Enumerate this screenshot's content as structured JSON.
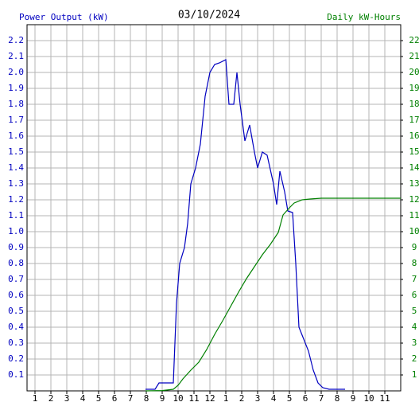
{
  "chart_data": {
    "type": "line",
    "title": "03/10/2024",
    "ylabel": "Power Output (kW)",
    "y2label": "Daily kW-Hours",
    "xlim": [
      0.5,
      24
    ],
    "xticks": [
      1,
      2,
      3,
      4,
      5,
      6,
      7,
      8,
      9,
      10,
      11,
      12,
      {
        "value": 13,
        "label": "1"
      },
      {
        "value": 14,
        "label": "2"
      },
      {
        "value": 15,
        "label": "3"
      },
      {
        "value": 16,
        "label": "4"
      },
      {
        "value": 17,
        "label": "5"
      },
      {
        "value": 18,
        "label": "6"
      },
      {
        "value": 19,
        "label": "7"
      },
      {
        "value": 20,
        "label": "8"
      },
      {
        "value": 21,
        "label": "9"
      },
      {
        "value": 22,
        "label": "10"
      },
      {
        "value": 23,
        "label": "11"
      }
    ],
    "ylim": [
      0,
      2.3
    ],
    "yticks": [
      0.1,
      0.2,
      0.3,
      0.4,
      0.5,
      0.6,
      0.7,
      0.8,
      0.9,
      {
        "value": 1.0,
        "label": "1.0"
      },
      1.1,
      1.2,
      1.3,
      1.4,
      1.5,
      1.6,
      1.7,
      1.8,
      1.9,
      {
        "value": 2.0,
        "label": "2.0"
      },
      2.1,
      2.2
    ],
    "y2lim": [
      0,
      23
    ],
    "y2ticks": [
      1,
      2,
      3,
      4,
      5,
      6,
      7,
      8,
      9,
      10,
      11,
      12,
      13,
      14,
      15,
      16,
      17,
      18,
      19,
      20,
      21,
      22
    ],
    "grid": true,
    "series": [
      {
        "name": "Power Output (kW)",
        "color": "#0000c0",
        "x": [
          7.95,
          8.55,
          8.8,
          9.7,
          9.9,
          10.1,
          10.4,
          10.6,
          10.8,
          11.1,
          11.4,
          11.7,
          12.0,
          12.3,
          12.6,
          13.0,
          13.2,
          13.5,
          13.7,
          13.9,
          14.2,
          14.5,
          14.8,
          15.0,
          15.3,
          15.6,
          16.0,
          16.2,
          16.4,
          16.7,
          16.9,
          17.2,
          17.4,
          17.6,
          17.8,
          18.2,
          18.5,
          18.8,
          19.1,
          19.5,
          20.5
        ],
        "values": [
          0.01,
          0.01,
          0.05,
          0.05,
          0.55,
          0.8,
          0.9,
          1.05,
          1.3,
          1.4,
          1.55,
          1.85,
          2.0,
          2.05,
          2.06,
          2.08,
          1.8,
          1.8,
          2.0,
          1.8,
          1.57,
          1.67,
          1.5,
          1.4,
          1.5,
          1.48,
          1.3,
          1.17,
          1.38,
          1.25,
          1.13,
          1.12,
          0.8,
          0.4,
          0.35,
          0.25,
          0.13,
          0.05,
          0.02,
          0.01,
          0.01
        ]
      },
      {
        "name": "Daily kW-Hours",
        "color": "#008000",
        "axis": "y2",
        "x": [
          7.95,
          9.0,
          9.7,
          10.0,
          10.3,
          10.8,
          11.3,
          11.8,
          12.3,
          12.8,
          13.3,
          13.8,
          14.3,
          14.8,
          15.3,
          15.8,
          16.3,
          16.6,
          17.0,
          17.3,
          17.8,
          18.3,
          19.0,
          20.0,
          22.0,
          24.0
        ],
        "values": [
          0,
          0.02,
          0.1,
          0.35,
          0.75,
          1.3,
          1.8,
          2.6,
          3.55,
          4.4,
          5.3,
          6.2,
          7.05,
          7.8,
          8.55,
          9.2,
          9.95,
          11.05,
          11.5,
          11.8,
          12.0,
          12.05,
          12.1,
          12.1,
          12.1,
          12.1
        ]
      }
    ]
  }
}
